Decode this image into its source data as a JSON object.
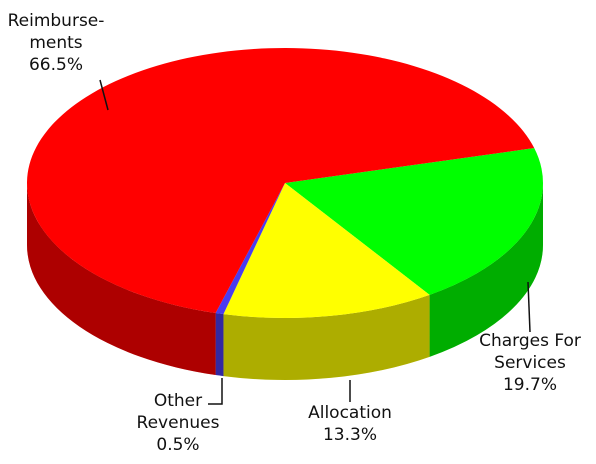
{
  "chart_data": {
    "type": "pie",
    "categories": [
      "Charges For Services",
      "Allocation",
      "Other Revenues",
      "Reimburse­ments"
    ],
    "values": [
      19.7,
      13.3,
      0.5,
      66.5
    ],
    "value_labels": [
      "19.7%",
      "13.3%",
      "0.5%",
      "66.5%"
    ],
    "colors": [
      "#00ff00",
      "#ffff00",
      "#4a3cf0",
      "#ff0000"
    ]
  }
}
